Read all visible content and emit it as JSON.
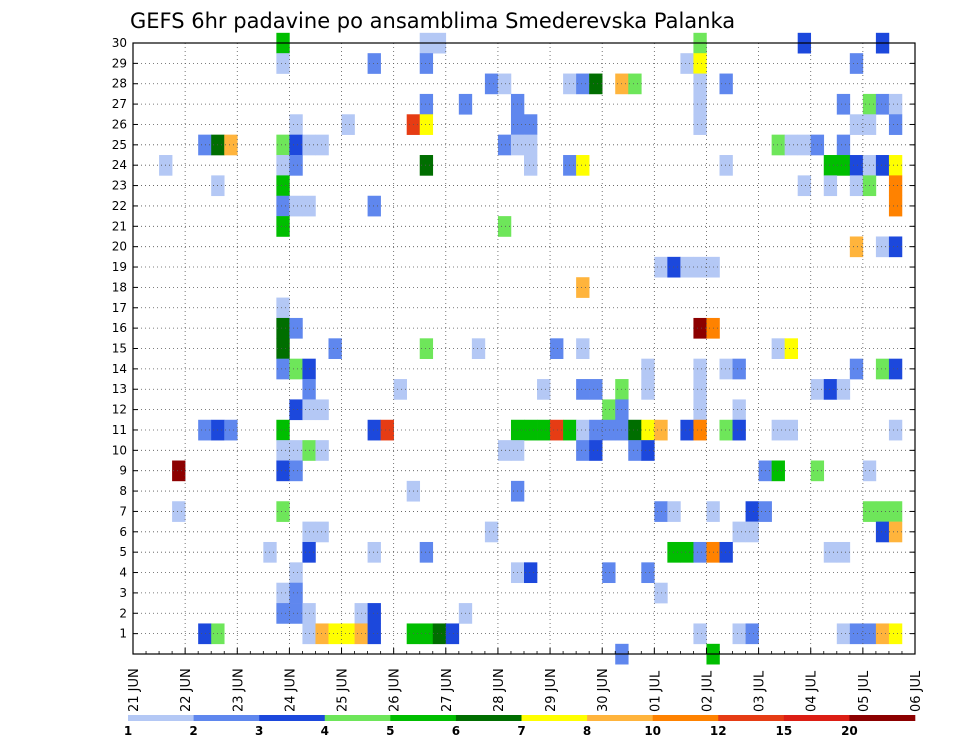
{
  "chart_data": {
    "type": "heatmap",
    "title": "GEFS 6hr padavine po ansamblima Smederevska Palanka",
    "xlabel": "",
    "ylabel": "",
    "x_tick_labels": [
      "21 JUN",
      "22 JUN",
      "23 JUN",
      "24 JUN",
      "25 JUN",
      "26 JUN",
      "27 JUN",
      "28 JUN",
      "29 JUN",
      "30 JUN",
      "01 JUL",
      "02 JUL",
      "03 JUL",
      "04 JUL",
      "05 JUL",
      "06 JUL"
    ],
    "x_steps_per_day": 4,
    "x_range_steps": [
      0,
      60
    ],
    "y_range": [
      0,
      30
    ],
    "y_tick_labels": [
      "1",
      "2",
      "3",
      "4",
      "5",
      "6",
      "7",
      "8",
      "9",
      "10",
      "11",
      "12",
      "13",
      "14",
      "15",
      "16",
      "17",
      "18",
      "19",
      "20",
      "21",
      "22",
      "23",
      "24",
      "25",
      "26",
      "27",
      "28",
      "29",
      "30"
    ],
    "grid": true,
    "colorbar": {
      "labels": [
        "1",
        "2",
        "3",
        "4",
        "5",
        "6",
        "7",
        "8",
        "10",
        "12",
        "15",
        "20"
      ],
      "colors": [
        "#b4c8f5",
        "#5f87ee",
        "#1c48dc",
        "#6ee65a",
        "#00be00",
        "#006e00",
        "#ffff00",
        "#ffb43c",
        "#ff8200",
        "#e63c14",
        "#dc1e14",
        "#8c0000"
      ]
    },
    "cells": [
      [
        30,
        11,
        4
      ],
      [
        30,
        22,
        0
      ],
      [
        30,
        23,
        0
      ],
      [
        30,
        43,
        3
      ],
      [
        30,
        51,
        2
      ],
      [
        30,
        57,
        2
      ],
      [
        29,
        11,
        0
      ],
      [
        29,
        18,
        1
      ],
      [
        29,
        22,
        1
      ],
      [
        29,
        42,
        0
      ],
      [
        29,
        43,
        6
      ],
      [
        29,
        55,
        1
      ],
      [
        28,
        27,
        1
      ],
      [
        28,
        28,
        0
      ],
      [
        28,
        33,
        0
      ],
      [
        28,
        34,
        1
      ],
      [
        28,
        35,
        5
      ],
      [
        28,
        37,
        7
      ],
      [
        28,
        38,
        3
      ],
      [
        28,
        43,
        0
      ],
      [
        28,
        45,
        1
      ],
      [
        27,
        22,
        1
      ],
      [
        27,
        25,
        1
      ],
      [
        27,
        29,
        1
      ],
      [
        27,
        43,
        0
      ],
      [
        27,
        54,
        1
      ],
      [
        27,
        56,
        3
      ],
      [
        27,
        57,
        1
      ],
      [
        27,
        58,
        0
      ],
      [
        26,
        12,
        0
      ],
      [
        26,
        16,
        0
      ],
      [
        26,
        21,
        9
      ],
      [
        26,
        22,
        6
      ],
      [
        26,
        29,
        1
      ],
      [
        26,
        30,
        1
      ],
      [
        26,
        43,
        0
      ],
      [
        26,
        55,
        0
      ],
      [
        26,
        56,
        0
      ],
      [
        26,
        58,
        1
      ],
      [
        25,
        5,
        1
      ],
      [
        25,
        6,
        5
      ],
      [
        25,
        7,
        7
      ],
      [
        25,
        11,
        3
      ],
      [
        25,
        12,
        2
      ],
      [
        25,
        13,
        0
      ],
      [
        25,
        14,
        0
      ],
      [
        25,
        28,
        1
      ],
      [
        25,
        29,
        0
      ],
      [
        25,
        30,
        0
      ],
      [
        25,
        49,
        3
      ],
      [
        25,
        50,
        0
      ],
      [
        25,
        51,
        0
      ],
      [
        25,
        52,
        1
      ],
      [
        25,
        54,
        1
      ],
      [
        24,
        2,
        0
      ],
      [
        24,
        11,
        0
      ],
      [
        24,
        12,
        1
      ],
      [
        24,
        22,
        5
      ],
      [
        24,
        30,
        0
      ],
      [
        24,
        33,
        1
      ],
      [
        24,
        34,
        6
      ],
      [
        24,
        45,
        0
      ],
      [
        24,
        53,
        4
      ],
      [
        24,
        54,
        4
      ],
      [
        24,
        55,
        2
      ],
      [
        24,
        56,
        0
      ],
      [
        24,
        57,
        2
      ],
      [
        24,
        58,
        6
      ],
      [
        23,
        6,
        0
      ],
      [
        23,
        11,
        4
      ],
      [
        23,
        51,
        0
      ],
      [
        23,
        53,
        0
      ],
      [
        23,
        55,
        0
      ],
      [
        23,
        56,
        3
      ],
      [
        23,
        58,
        8
      ],
      [
        22,
        11,
        1
      ],
      [
        22,
        12,
        0
      ],
      [
        22,
        13,
        0
      ],
      [
        22,
        18,
        1
      ],
      [
        22,
        58,
        8
      ],
      [
        21,
        11,
        4
      ],
      [
        21,
        28,
        3
      ],
      [
        20,
        55,
        7
      ],
      [
        20,
        57,
        0
      ],
      [
        20,
        58,
        2
      ],
      [
        19,
        40,
        0
      ],
      [
        19,
        41,
        2
      ],
      [
        19,
        42,
        0
      ],
      [
        19,
        43,
        0
      ],
      [
        19,
        44,
        0
      ],
      [
        18,
        34,
        7
      ],
      [
        17,
        11,
        0
      ],
      [
        16,
        11,
        5
      ],
      [
        16,
        12,
        1
      ],
      [
        16,
        43,
        11
      ],
      [
        16,
        44,
        8
      ],
      [
        15,
        11,
        5
      ],
      [
        15,
        15,
        1
      ],
      [
        15,
        22,
        3
      ],
      [
        15,
        26,
        0
      ],
      [
        15,
        32,
        1
      ],
      [
        15,
        34,
        0
      ],
      [
        15,
        49,
        0
      ],
      [
        15,
        50,
        6
      ],
      [
        14,
        11,
        1
      ],
      [
        14,
        12,
        3
      ],
      [
        14,
        13,
        2
      ],
      [
        14,
        39,
        0
      ],
      [
        14,
        43,
        0
      ],
      [
        14,
        45,
        0
      ],
      [
        14,
        46,
        1
      ],
      [
        14,
        55,
        1
      ],
      [
        14,
        57,
        3
      ],
      [
        14,
        58,
        2
      ],
      [
        13,
        13,
        1
      ],
      [
        13,
        20,
        0
      ],
      [
        13,
        31,
        0
      ],
      [
        13,
        34,
        1
      ],
      [
        13,
        35,
        1
      ],
      [
        13,
        37,
        3
      ],
      [
        13,
        39,
        0
      ],
      [
        13,
        43,
        0
      ],
      [
        13,
        52,
        0
      ],
      [
        13,
        53,
        2
      ],
      [
        13,
        54,
        0
      ],
      [
        12,
        12,
        2
      ],
      [
        12,
        13,
        0
      ],
      [
        12,
        14,
        0
      ],
      [
        12,
        36,
        3
      ],
      [
        12,
        37,
        1
      ],
      [
        12,
        43,
        0
      ],
      [
        12,
        46,
        0
      ],
      [
        11,
        5,
        1
      ],
      [
        11,
        6,
        2
      ],
      [
        11,
        7,
        1
      ],
      [
        11,
        11,
        4
      ],
      [
        11,
        18,
        2
      ],
      [
        11,
        19,
        9
      ],
      [
        11,
        29,
        4
      ],
      [
        11,
        30,
        4
      ],
      [
        11,
        31,
        4
      ],
      [
        11,
        32,
        9
      ],
      [
        11,
        33,
        4
      ],
      [
        11,
        34,
        0
      ],
      [
        11,
        35,
        1
      ],
      [
        11,
        36,
        1
      ],
      [
        11,
        37,
        1
      ],
      [
        11,
        38,
        5
      ],
      [
        11,
        39,
        6
      ],
      [
        11,
        40,
        7
      ],
      [
        11,
        42,
        2
      ],
      [
        11,
        43,
        8
      ],
      [
        11,
        45,
        3
      ],
      [
        11,
        46,
        2
      ],
      [
        11,
        49,
        0
      ],
      [
        11,
        50,
        0
      ],
      [
        11,
        58,
        0
      ],
      [
        10,
        11,
        0
      ],
      [
        10,
        12,
        0
      ],
      [
        10,
        13,
        3
      ],
      [
        10,
        14,
        0
      ],
      [
        10,
        28,
        0
      ],
      [
        10,
        29,
        0
      ],
      [
        10,
        34,
        1
      ],
      [
        10,
        35,
        2
      ],
      [
        10,
        38,
        1
      ],
      [
        10,
        39,
        2
      ],
      [
        9,
        3,
        11
      ],
      [
        9,
        11,
        2
      ],
      [
        9,
        12,
        1
      ],
      [
        9,
        48,
        1
      ],
      [
        9,
        49,
        4
      ],
      [
        9,
        52,
        3
      ],
      [
        9,
        56,
        0
      ],
      [
        8,
        21,
        0
      ],
      [
        8,
        29,
        1
      ],
      [
        7,
        3,
        0
      ],
      [
        7,
        11,
        3
      ],
      [
        7,
        40,
        1
      ],
      [
        7,
        41,
        0
      ],
      [
        7,
        44,
        0
      ],
      [
        7,
        47,
        2
      ],
      [
        7,
        48,
        1
      ],
      [
        7,
        56,
        3
      ],
      [
        7,
        57,
        3
      ],
      [
        7,
        58,
        3
      ],
      [
        6,
        13,
        0
      ],
      [
        6,
        14,
        0
      ],
      [
        6,
        27,
        0
      ],
      [
        6,
        46,
        0
      ],
      [
        6,
        47,
        0
      ],
      [
        6,
        57,
        2
      ],
      [
        6,
        58,
        7
      ],
      [
        5,
        10,
        0
      ],
      [
        5,
        13,
        2
      ],
      [
        5,
        18,
        0
      ],
      [
        5,
        22,
        1
      ],
      [
        5,
        41,
        4
      ],
      [
        5,
        42,
        4
      ],
      [
        5,
        43,
        1
      ],
      [
        5,
        44,
        8
      ],
      [
        5,
        45,
        2
      ],
      [
        5,
        53,
        0
      ],
      [
        5,
        54,
        0
      ],
      [
        4,
        12,
        0
      ],
      [
        4,
        29,
        0
      ],
      [
        4,
        30,
        2
      ],
      [
        4,
        36,
        1
      ],
      [
        4,
        39,
        1
      ],
      [
        3,
        11,
        0
      ],
      [
        3,
        12,
        1
      ],
      [
        3,
        40,
        0
      ],
      [
        2,
        11,
        1
      ],
      [
        2,
        12,
        1
      ],
      [
        2,
        13,
        0
      ],
      [
        2,
        17,
        0
      ],
      [
        2,
        18,
        2
      ],
      [
        2,
        25,
        0
      ],
      [
        1,
        5,
        2
      ],
      [
        1,
        6,
        3
      ],
      [
        1,
        13,
        0
      ],
      [
        1,
        14,
        7
      ],
      [
        1,
        15,
        6
      ],
      [
        1,
        16,
        6
      ],
      [
        1,
        17,
        7
      ],
      [
        1,
        18,
        2
      ],
      [
        1,
        21,
        4
      ],
      [
        1,
        22,
        4
      ],
      [
        1,
        23,
        5
      ],
      [
        1,
        24,
        2
      ],
      [
        1,
        43,
        0
      ],
      [
        1,
        46,
        0
      ],
      [
        1,
        47,
        1
      ],
      [
        1,
        54,
        0
      ],
      [
        1,
        55,
        1
      ],
      [
        1,
        56,
        1
      ],
      [
        1,
        57,
        7
      ],
      [
        1,
        58,
        6
      ],
      [
        0,
        37,
        1
      ],
      [
        0,
        44,
        4
      ]
    ]
  }
}
